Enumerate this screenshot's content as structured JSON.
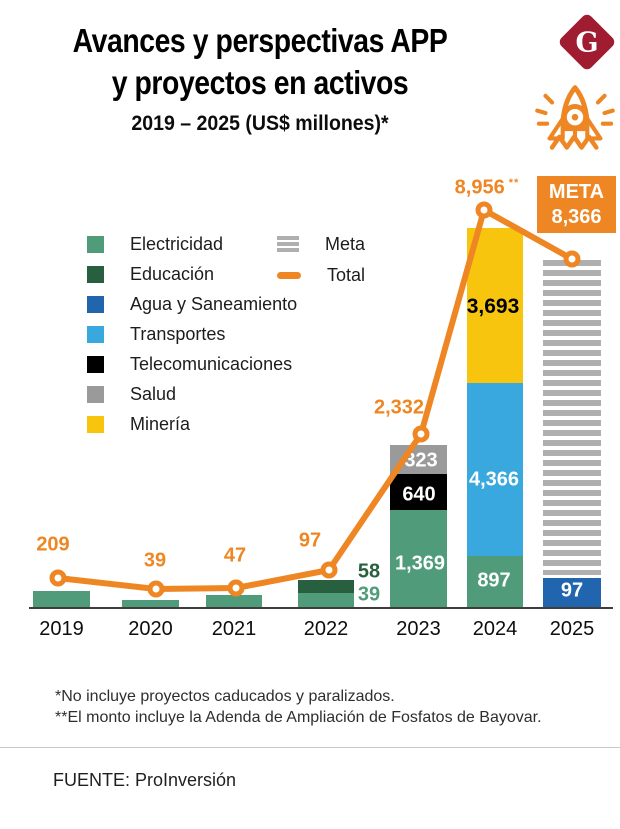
{
  "header": {
    "title_line1": "Avances y perspectivas APP",
    "title_line2": "y proyectos en activos",
    "subtitle": "2019 – 2025 (US$ millones)*",
    "logo_letter": "G"
  },
  "meta_badge": {
    "label": "META",
    "value": "8,366"
  },
  "legend": {
    "sectors": [
      "Electricidad",
      "Educación",
      "Agua y Saneamiento",
      "Transportes",
      "Telecomunicaciones",
      "Salud",
      "Minería"
    ],
    "meta_label": "Meta",
    "total_label": "Total"
  },
  "colors": {
    "Electricidad": "#4F9B7A",
    "Educación": "#28603F",
    "Agua y Saneamiento": "#2165AE",
    "Transportes": "#38A8DE",
    "Telecomunicaciones": "#000000",
    "Salud": "#9A9A9A",
    "Minería": "#F7C50E",
    "total": "#EE8723",
    "meta_stripe": "#AFAFAF",
    "logo": "#A01C30",
    "label_inside": "#FFFFFF",
    "label_dark": "#000000"
  },
  "chart_data": {
    "type": "stacked-bar-with-line",
    "title": "Avances y perspectivas APP y proyectos en activos",
    "unit": "US$ millones",
    "categories": [
      "2019",
      "2020",
      "2021",
      "2022",
      "2023",
      "2024",
      "2025"
    ],
    "bars": [
      {
        "year": "2019",
        "segments": [
          {
            "sector": "Electricidad",
            "value": 209,
            "label": ""
          }
        ]
      },
      {
        "year": "2020",
        "segments": [
          {
            "sector": "Electricidad",
            "value": 39,
            "label": ""
          }
        ]
      },
      {
        "year": "2021",
        "segments": [
          {
            "sector": "Electricidad",
            "value": 47,
            "label": ""
          }
        ]
      },
      {
        "year": "2022",
        "segments": [
          {
            "sector": "Electricidad",
            "value": 39,
            "label": "39"
          },
          {
            "sector": "Educación",
            "value": 58,
            "label": "58"
          }
        ]
      },
      {
        "year": "2023",
        "segments": [
          {
            "sector": "Electricidad",
            "value": 1369,
            "label": "1,369"
          },
          {
            "sector": "Telecomunicaciones",
            "value": 640,
            "label": "640"
          },
          {
            "sector": "Salud",
            "value": 323,
            "label": "323"
          }
        ]
      },
      {
        "year": "2024",
        "segments": [
          {
            "sector": "Electricidad",
            "value": 897,
            "label": "897"
          },
          {
            "sector": "Transportes",
            "value": 4366,
            "label": "4,366"
          },
          {
            "sector": "Minería",
            "value": 3693,
            "label": "3,693"
          }
        ]
      },
      {
        "year": "2025",
        "segments": [
          {
            "sector": "Agua y Saneamiento",
            "value": 97,
            "label": "97"
          }
        ],
        "meta_bar": true
      }
    ],
    "total_line": {
      "name": "Total",
      "points": [
        {
          "year": "2019",
          "value": 209,
          "label": "209"
        },
        {
          "year": "2020",
          "value": 39,
          "label": "39"
        },
        {
          "year": "2021",
          "value": 47,
          "label": "47"
        },
        {
          "year": "2022",
          "value": 97,
          "label": "97"
        },
        {
          "year": "2023",
          "value": 2332,
          "label": "2,332"
        },
        {
          "year": "2024",
          "value": 8956,
          "label": "8,956",
          "suffix": "**"
        },
        {
          "year": "2025",
          "value": 8366,
          "label": ""
        }
      ]
    },
    "meta_target": {
      "year": "2025",
      "value": 8366
    }
  },
  "footnotes": [
    "*No incluye proyectos caducados y paralizados.",
    "**El monto incluye la Adenda de Ampliación de Fosfatos de Bayovar."
  ],
  "source": "FUENTE: ProInversión"
}
